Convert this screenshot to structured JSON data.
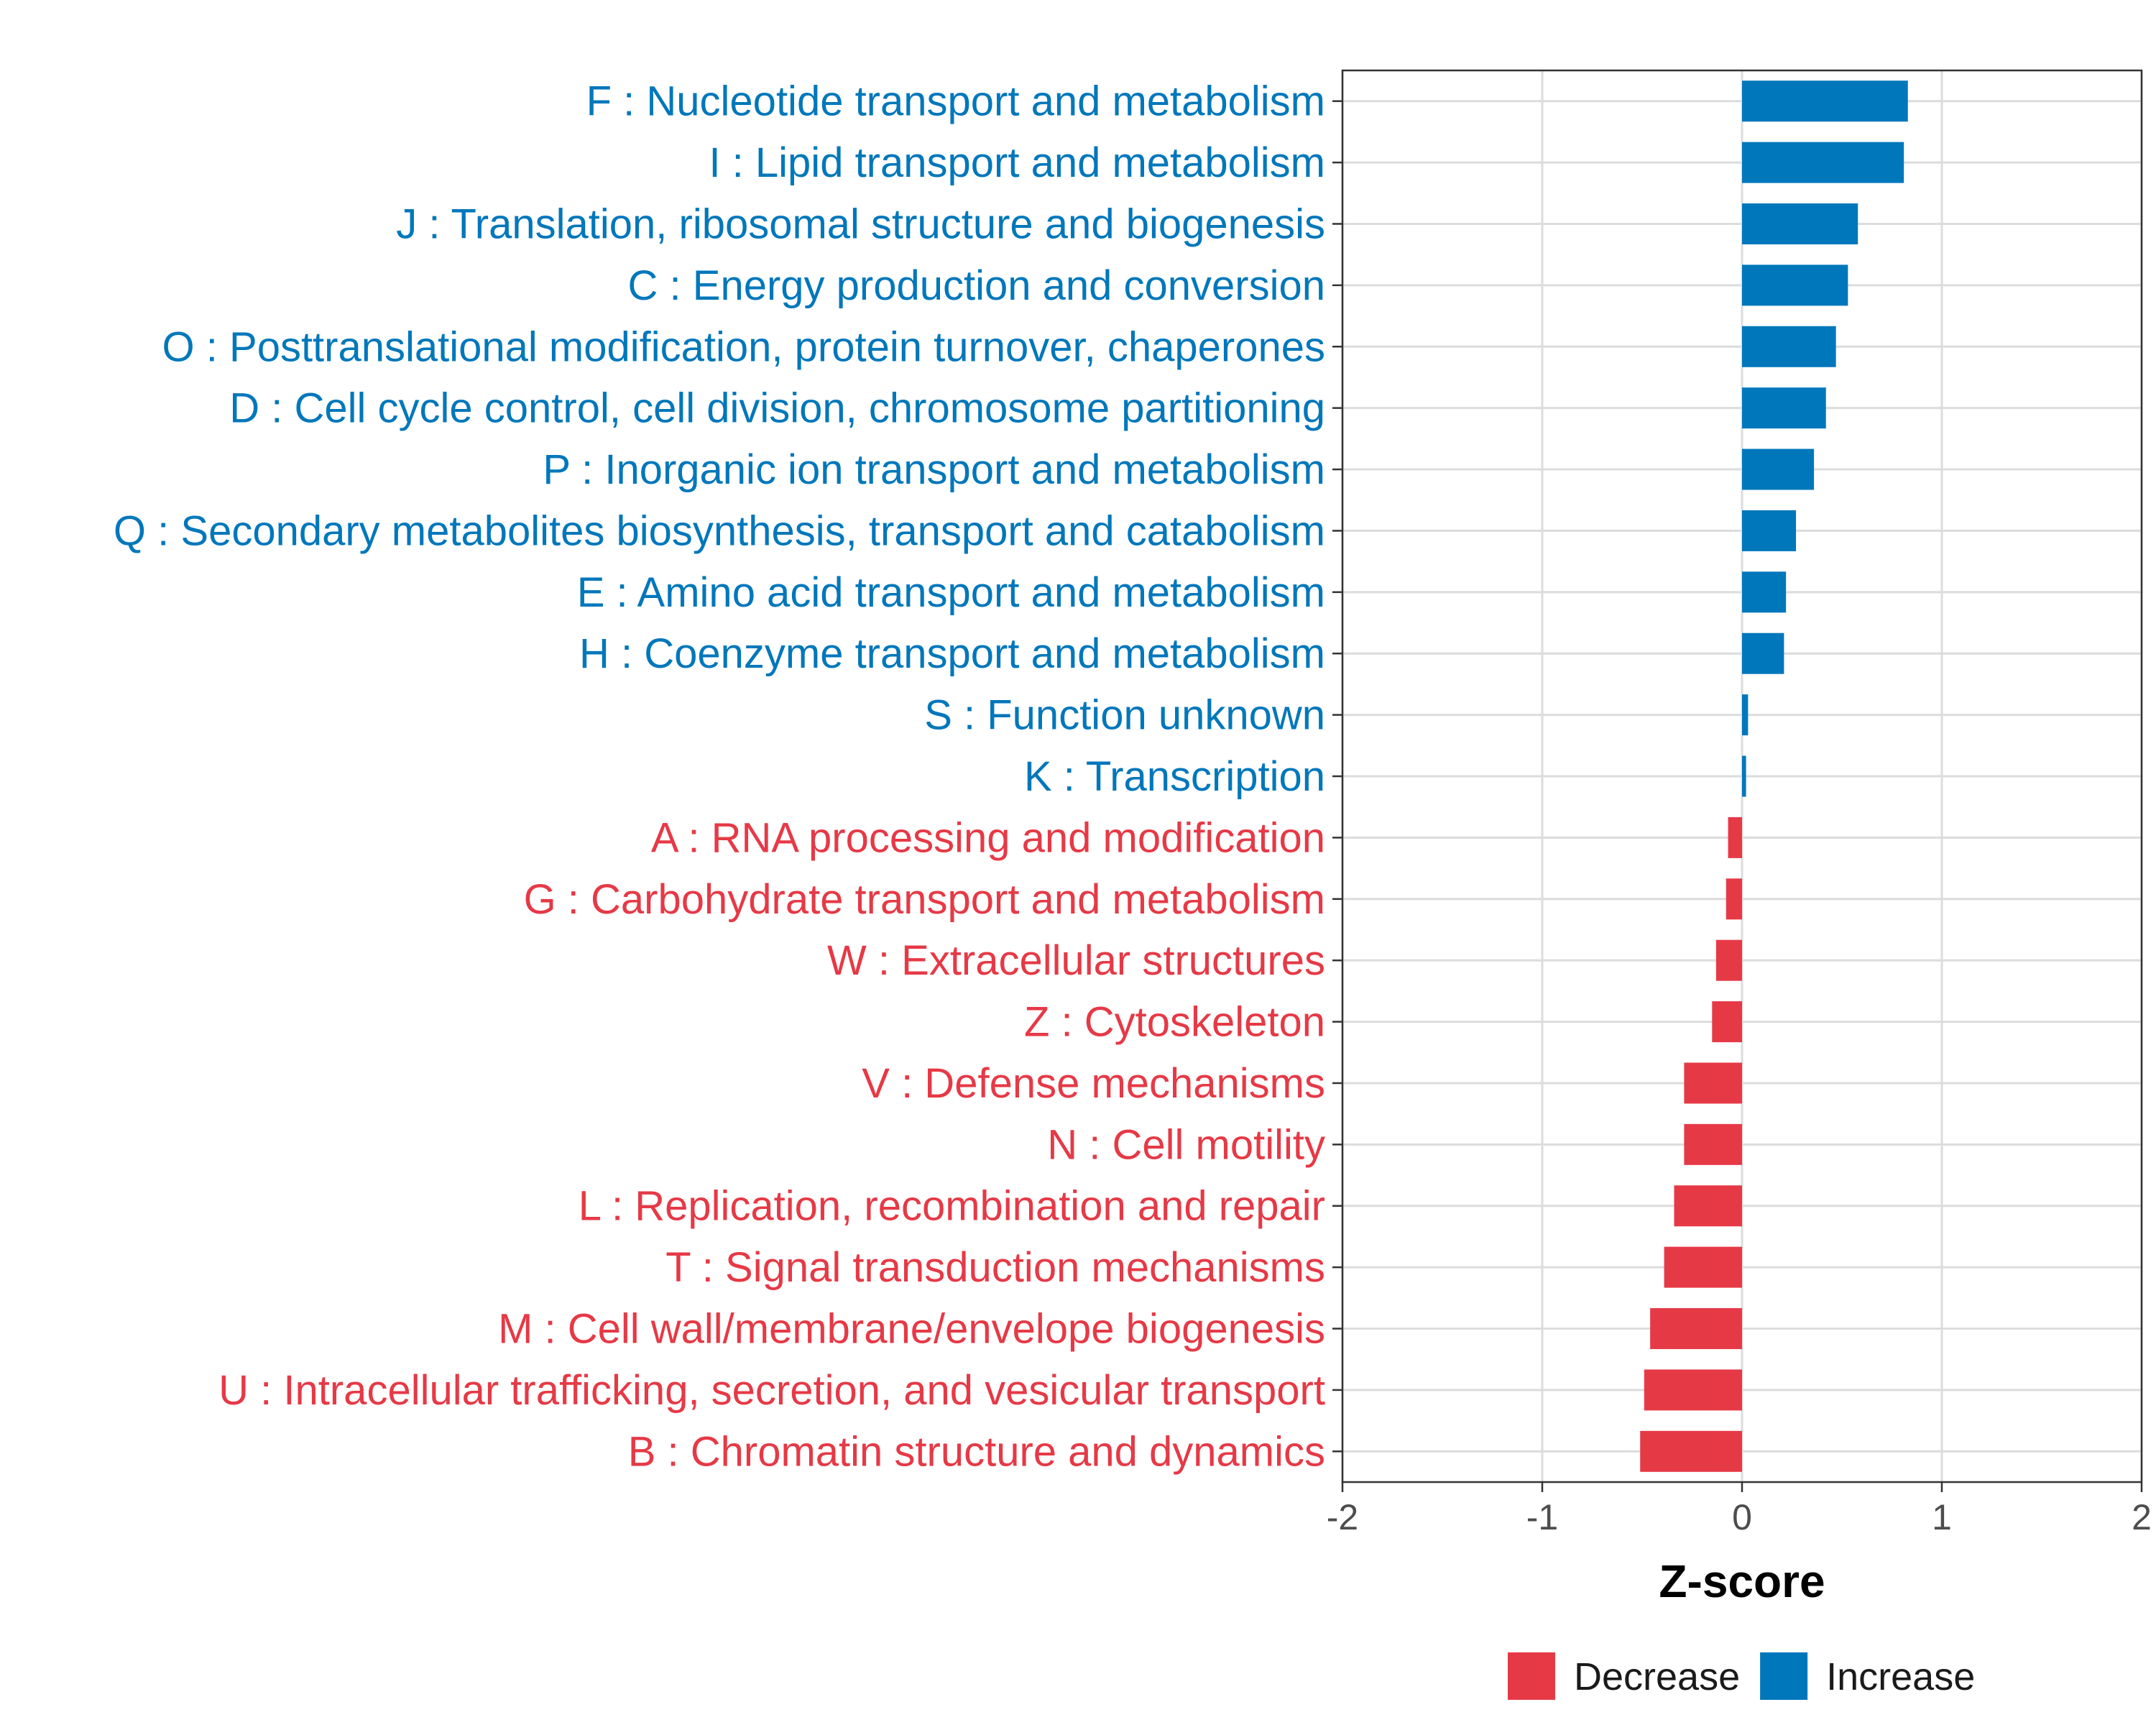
{
  "chart_data": {
    "type": "bar",
    "orientation": "horizontal",
    "xlabel": "Z-score",
    "xlim": [
      -2,
      2
    ],
    "xticks": [
      -2,
      -1,
      0,
      1,
      2
    ],
    "grid": true,
    "legend": {
      "placement": "bottom",
      "entries": [
        {
          "key": "decrease",
          "label": "Decrease",
          "color": "#E63946"
        },
        {
          "key": "increase",
          "label": "Increase",
          "color": "#0077BB"
        }
      ]
    },
    "categories": [
      "F : Nucleotide transport and metabolism",
      "I : Lipid transport and metabolism",
      "J : Translation, ribosomal structure and biogenesis",
      "C : Energy production and conversion",
      "O : Posttranslational modification, protein turnover, chaperones",
      "D : Cell cycle control, cell division, chromosome partitioning",
      "P : Inorganic ion transport and metabolism",
      "Q : Secondary metabolites biosynthesis, transport and catabolism",
      "E : Amino acid transport and metabolism",
      "H : Coenzyme transport and metabolism",
      "S : Function unknown",
      "K : Transcription",
      "A : RNA processing and modification",
      "G : Carbohydrate transport and metabolism",
      "W : Extracellular structures",
      "Z : Cytoskeleton",
      "V : Defense mechanisms",
      "N : Cell motility",
      "L : Replication, recombination and repair",
      "T : Signal transduction mechanisms",
      "M : Cell wall/membrane/envelope biogenesis",
      "U : Intracellular trafficking, secretion, and vesicular transport",
      "B : Chromatin structure and dynamics"
    ],
    "values": [
      0.83,
      0.81,
      0.58,
      0.53,
      0.47,
      0.42,
      0.36,
      0.27,
      0.22,
      0.21,
      0.03,
      0.02,
      -0.07,
      -0.08,
      -0.13,
      -0.15,
      -0.29,
      -0.29,
      -0.34,
      -0.39,
      -0.46,
      -0.49,
      -0.51
    ]
  }
}
